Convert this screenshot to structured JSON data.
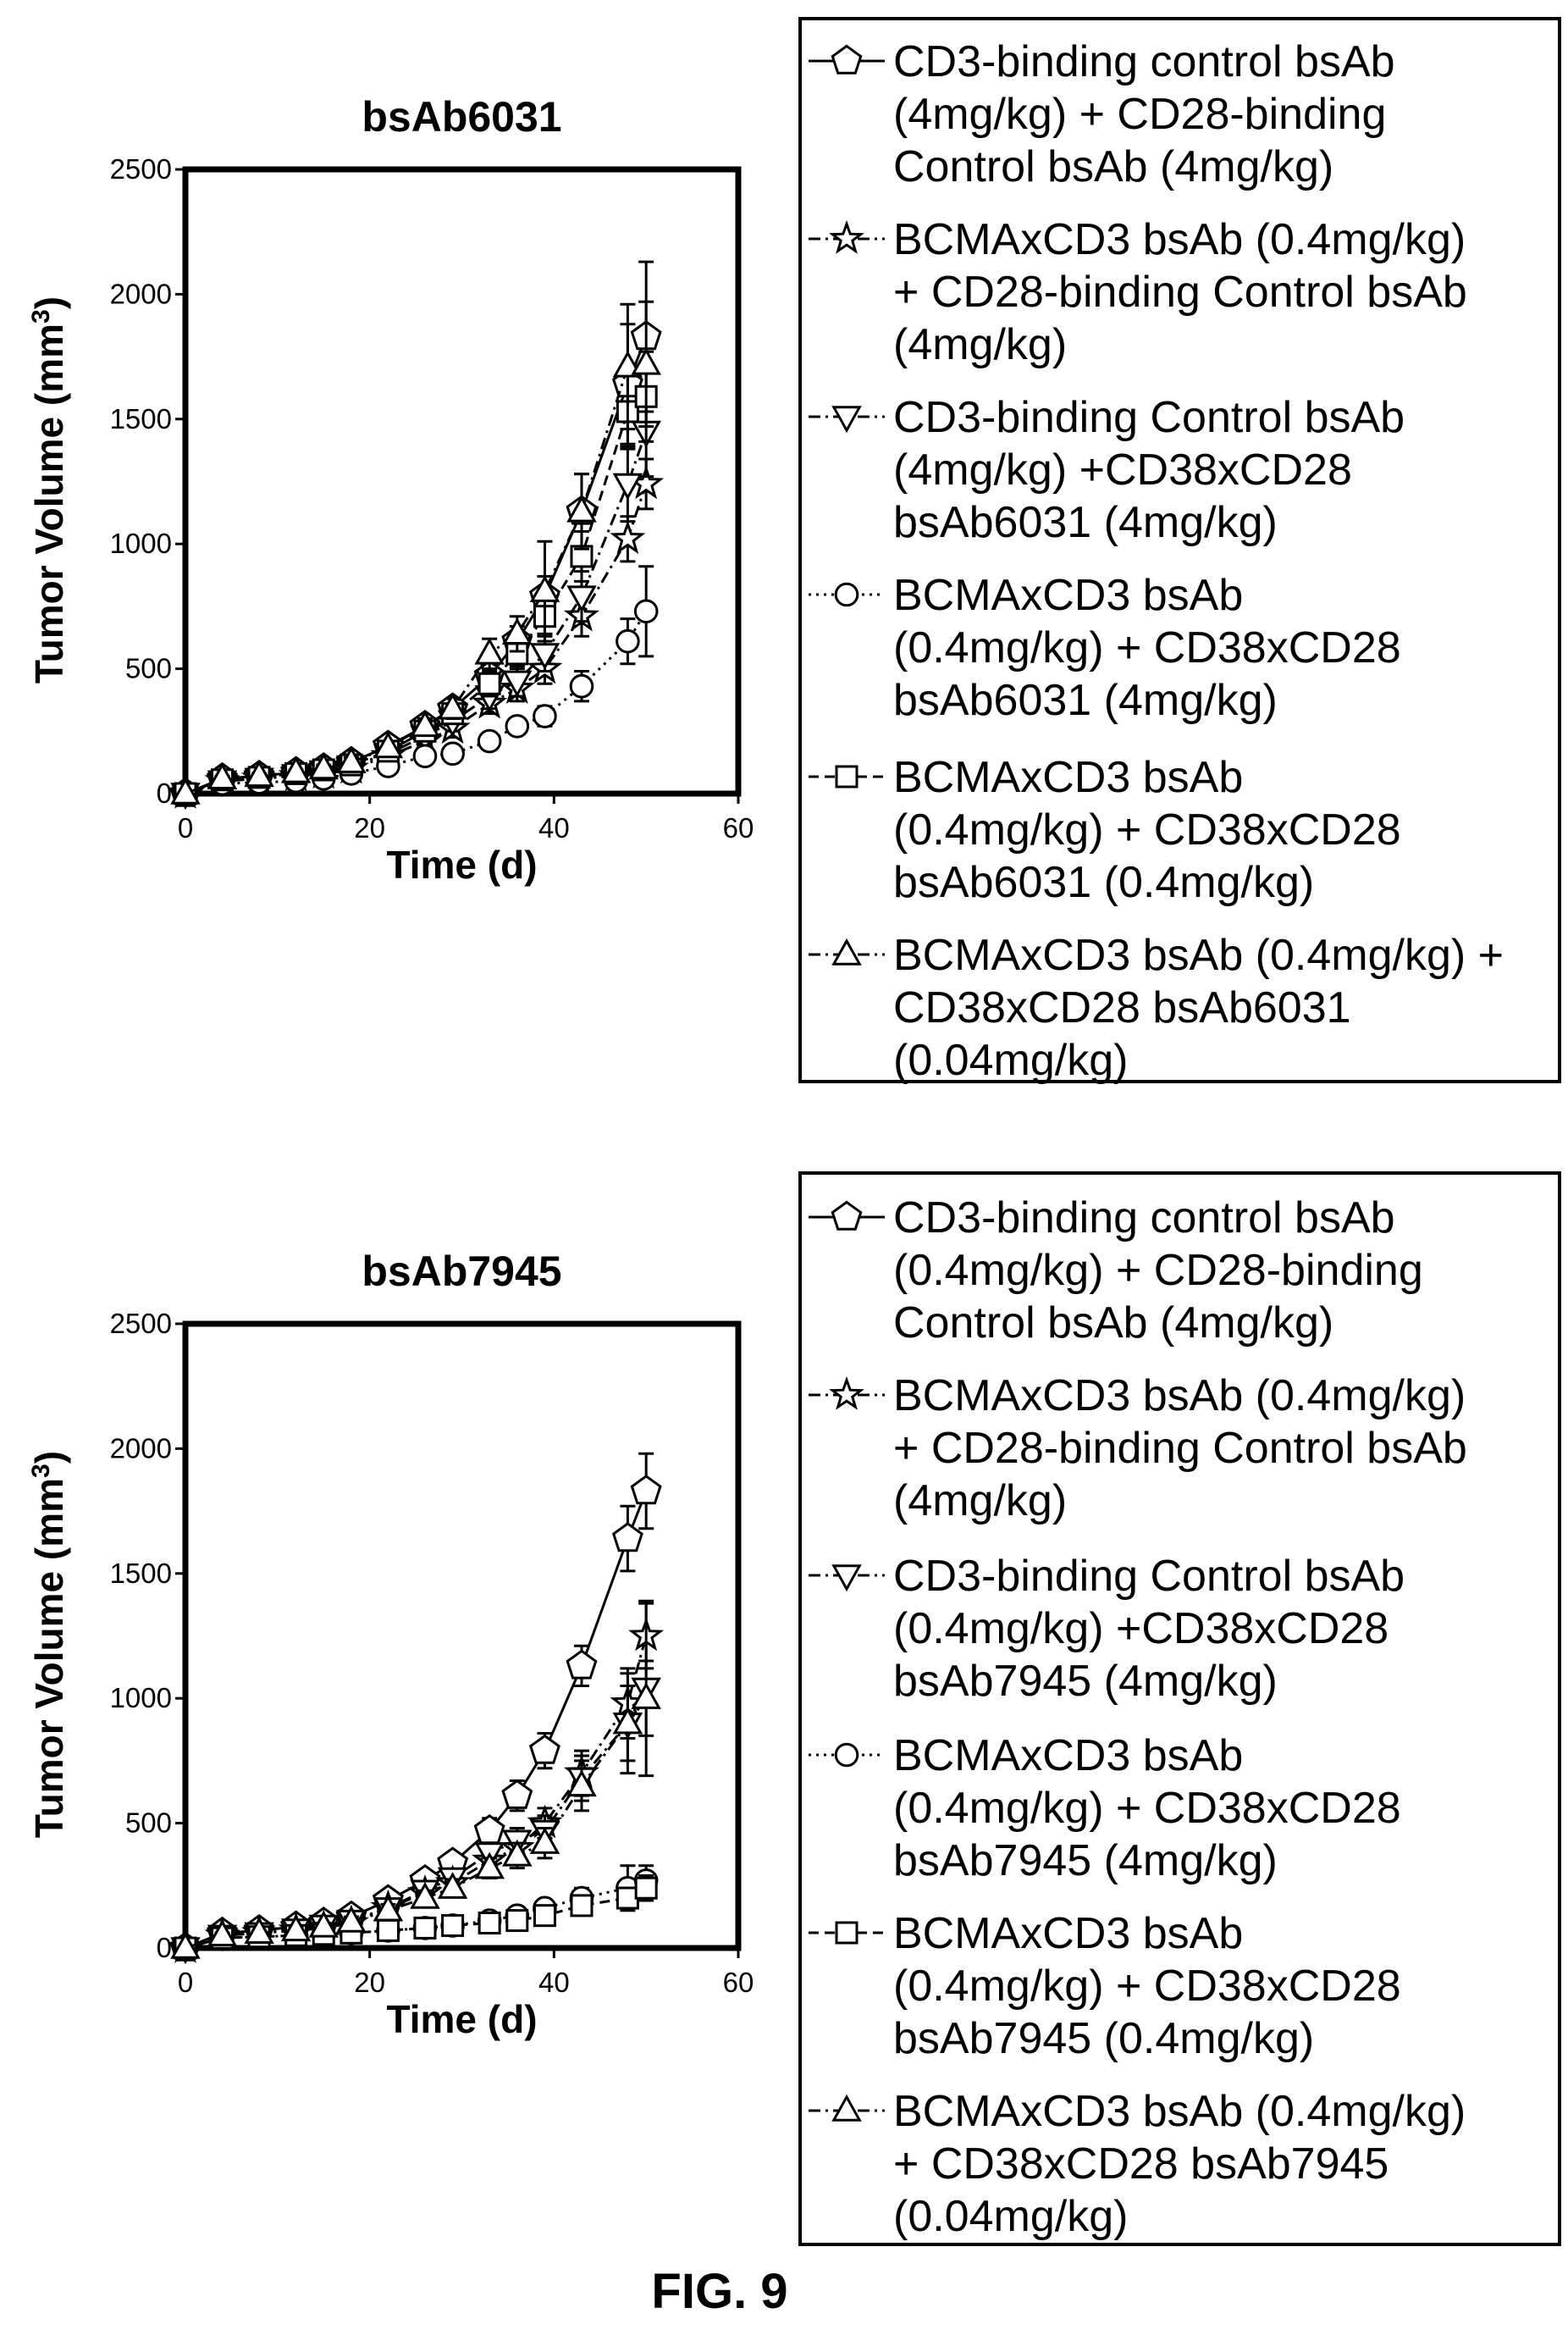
{
  "figure_label": "FIG. 9",
  "chart_data": [
    {
      "type": "line",
      "title": "bsAb6031",
      "xlabel": "Time (d)",
      "ylabel": "Tumor Volume (mm",
      "ylabel_sup": "3",
      "ylabel_close": ")",
      "xlim": [
        0,
        60
      ],
      "ylim": [
        0,
        2500
      ],
      "xticks": [
        "0",
        "20",
        "40",
        "60"
      ],
      "yticks": [
        "0",
        "500",
        "1000",
        "1500",
        "2000",
        "2500"
      ],
      "x": [
        0,
        4,
        8,
        12,
        15,
        18,
        22,
        26,
        29,
        33,
        36,
        39,
        43,
        48,
        50
      ],
      "legend": [
        "CD3-binding control bsAb (4mg/kg) + CD28-binding Control bsAb (4mg/kg)",
        "BCMAxCD3 bsAb (0.4mg/kg) + CD28-binding Control bsAb (4mg/kg)",
        "CD3-binding Control bsAb (4mg/kg) +CD38xCD28 bsAb6031 (4mg/kg)",
        "BCMAxCD3 bsAb (0.4mg/kg) + CD38xCD28 bsAb6031 (4mg/kg)",
        "BCMAxCD3 bsAb (0.4mg/kg) + CD38xCD28 bsAb6031 (0.4mg/kg)",
        "BCMAxCD3 bsAb (0.4mg/kg) + CD38xCD28 bsAb6031 (0.04mg/kg)"
      ],
      "legend_lines": [
        [
          "CD3-binding control bsAb",
          "(4mg/kg) + CD28-binding",
          "Control bsAb (4mg/kg)"
        ],
        [
          "BCMAxCD3 bsAb (0.4mg/kg)",
          "+ CD28-binding Control bsAb",
          "(4mg/kg)"
        ],
        [
          "CD3-binding Control bsAb",
          "(4mg/kg) +CD38xCD28",
          "bsAb6031 (4mg/kg)"
        ],
        [
          "BCMAxCD3 bsAb",
          "(0.4mg/kg) + CD38xCD28",
          "bsAb6031 (4mg/kg)"
        ],
        [
          "BCMAxCD3 bsAb",
          "(0.4mg/kg) + CD38xCD28",
          "bsAb6031 (0.4mg/kg)"
        ],
        [
          "BCMAxCD3 bsAb (0.4mg/kg) +",
          "CD38xCD28 bsAb6031",
          "(0.04mg/kg)"
        ]
      ],
      "series": [
        {
          "marker": "pentagon",
          "dash": "solid",
          "values": [
            0,
            60,
            70,
            85,
            100,
            125,
            190,
            270,
            340,
            470,
            610,
            790,
            1130,
            1640,
            1830
          ],
          "err": [
            0,
            10,
            10,
            10,
            15,
            20,
            25,
            30,
            40,
            50,
            60,
            80,
            150,
            240,
            300
          ]
        },
        {
          "marker": "star",
          "dash": "dashdot",
          "values": [
            0,
            50,
            60,
            70,
            80,
            100,
            150,
            210,
            260,
            360,
            420,
            500,
            710,
            1020,
            1240
          ],
          "err": [
            0,
            10,
            10,
            10,
            15,
            20,
            25,
            30,
            35,
            40,
            50,
            60,
            80,
            90,
            100
          ]
        },
        {
          "marker": "tri-down",
          "dash": "dashdot",
          "values": [
            0,
            50,
            60,
            75,
            90,
            110,
            160,
            230,
            290,
            390,
            450,
            560,
            790,
            1240,
            1450
          ],
          "err": [
            0,
            10,
            10,
            10,
            15,
            20,
            25,
            30,
            40,
            50,
            60,
            70,
            100,
            150,
            180
          ]
        },
        {
          "marker": "circle",
          "dash": "dotted",
          "values": [
            0,
            40,
            45,
            50,
            60,
            80,
            110,
            150,
            160,
            210,
            270,
            310,
            430,
            610,
            730
          ],
          "err": [
            0,
            5,
            5,
            5,
            10,
            10,
            15,
            20,
            20,
            30,
            30,
            40,
            60,
            90,
            180
          ]
        },
        {
          "marker": "square",
          "dash": "dashed",
          "values": [
            0,
            55,
            65,
            80,
            95,
            115,
            170,
            250,
            320,
            440,
            560,
            710,
            950,
            1530,
            1590
          ],
          "err": [
            0,
            10,
            10,
            10,
            15,
            20,
            25,
            30,
            40,
            50,
            60,
            70,
            100,
            150,
            180
          ]
        },
        {
          "marker": "triangle",
          "dash": "dashdot",
          "values": [
            0,
            60,
            70,
            85,
            100,
            125,
            185,
            270,
            340,
            560,
            640,
            810,
            1130,
            1710,
            1720
          ],
          "err": [
            0,
            10,
            10,
            10,
            15,
            20,
            25,
            30,
            40,
            60,
            70,
            200,
            150,
            250,
            250
          ]
        }
      ]
    },
    {
      "type": "line",
      "title": "bsAb7945",
      "xlabel": "Time (d)",
      "ylabel": "Tumor Volume (mm",
      "ylabel_sup": "3",
      "ylabel_close": ")",
      "xlim": [
        0,
        60
      ],
      "ylim": [
        0,
        2500
      ],
      "xticks": [
        "0",
        "20",
        "40",
        "60"
      ],
      "yticks": [
        "0",
        "500",
        "1000",
        "1500",
        "2000",
        "2500"
      ],
      "x": [
        0,
        4,
        8,
        12,
        15,
        18,
        22,
        26,
        29,
        33,
        36,
        39,
        43,
        48,
        50
      ],
      "legend": [
        "CD3-binding control bsAb (0.4mg/kg) + CD28-binding Control bsAb (4mg/kg)",
        "BCMAxCD3 bsAb (0.4mg/kg) + CD28-binding Control bsAb (4mg/kg)",
        "CD3-binding Control bsAb (0.4mg/kg) +CD38xCD28 bsAb7945 (4mg/kg)",
        "BCMAxCD3 bsAb (0.4mg/kg) + CD38xCD28 bsAb7945 (4mg/kg)",
        "BCMAxCD3 bsAb (0.4mg/kg) + CD38xCD28 bsAb7945 (0.4mg/kg)",
        "BCMAxCD3 bsAb (0.4mg/kg) + CD38xCD28 bsAb7945 (0.04mg/kg)"
      ],
      "legend_lines": [
        [
          "CD3-binding control bsAb",
          "(0.4mg/kg) + CD28-binding",
          "Control bsAb (4mg/kg)"
        ],
        [
          "BCMAxCD3 bsAb (0.4mg/kg)",
          "+ CD28-binding Control bsAb",
          "(4mg/kg)"
        ],
        [
          "CD3-binding Control bsAb",
          "(0.4mg/kg) +CD38xCD28",
          "bsAb7945 (4mg/kg)"
        ],
        [
          "BCMAxCD3 bsAb",
          "(0.4mg/kg) + CD38xCD28",
          "bsAb7945 (4mg/kg)"
        ],
        [
          "BCMAxCD3 bsAb",
          "(0.4mg/kg) + CD38xCD28",
          "bsAb7945 (0.4mg/kg)"
        ],
        [
          "BCMAxCD3 bsAb (0.4mg/kg)",
          "+ CD38xCD28 bsAb7945",
          "(0.04mg/kg)"
        ]
      ],
      "series": [
        {
          "marker": "pentagon",
          "dash": "solid",
          "values": [
            0,
            60,
            70,
            85,
            100,
            125,
            190,
            270,
            340,
            470,
            610,
            790,
            1130,
            1640,
            1830
          ],
          "err": [
            0,
            10,
            10,
            10,
            15,
            20,
            25,
            30,
            40,
            50,
            60,
            70,
            80,
            130,
            150
          ]
        },
        {
          "marker": "star",
          "dash": "dashdot",
          "values": [
            0,
            50,
            60,
            70,
            80,
            100,
            160,
            220,
            260,
            350,
            400,
            500,
            700,
            980,
            1250
          ],
          "err": [
            0,
            10,
            10,
            10,
            15,
            20,
            25,
            30,
            35,
            40,
            50,
            60,
            90,
            140,
            130
          ]
        },
        {
          "marker": "tri-down",
          "dash": "dashdot",
          "values": [
            0,
            50,
            60,
            75,
            90,
            110,
            160,
            230,
            280,
            380,
            430,
            470,
            680,
            900,
            1040
          ],
          "err": [
            0,
            10,
            10,
            10,
            15,
            20,
            25,
            30,
            35,
            40,
            50,
            60,
            90,
            200,
            350
          ]
        },
        {
          "marker": "circle",
          "dash": "dotted",
          "values": [
            0,
            40,
            45,
            50,
            55,
            60,
            70,
            80,
            90,
            110,
            130,
            160,
            200,
            240,
            270
          ],
          "err": [
            0,
            5,
            5,
            5,
            10,
            10,
            15,
            15,
            20,
            20,
            20,
            25,
            40,
            90,
            60
          ]
        },
        {
          "marker": "square",
          "dash": "dashed",
          "values": [
            0,
            40,
            45,
            50,
            55,
            60,
            70,
            80,
            90,
            100,
            110,
            130,
            170,
            200,
            240
          ],
          "err": [
            0,
            5,
            5,
            5,
            10,
            10,
            15,
            15,
            20,
            20,
            20,
            25,
            30,
            40,
            50
          ]
        },
        {
          "marker": "triangle",
          "dash": "dashdot",
          "values": [
            0,
            50,
            60,
            70,
            85,
            105,
            150,
            200,
            240,
            320,
            370,
            420,
            650,
            900,
            1000
          ],
          "err": [
            0,
            10,
            10,
            10,
            15,
            20,
            25,
            30,
            35,
            40,
            50,
            60,
            100,
            150,
            150
          ]
        }
      ]
    }
  ]
}
